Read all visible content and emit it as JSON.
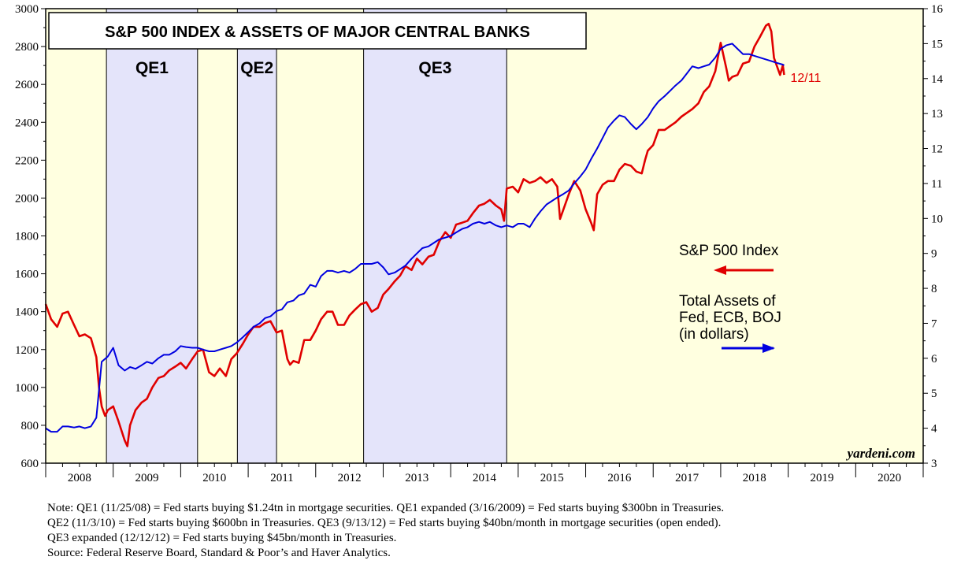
{
  "chart_data": {
    "type": "line",
    "title": "S&P 500 INDEX & ASSETS OF MAJOR CENTRAL BANKS",
    "x_range": [
      2008,
      2021
    ],
    "x_ticks": [
      "2008",
      "2009",
      "2010",
      "2011",
      "2012",
      "2013",
      "2014",
      "2015",
      "2016",
      "2017",
      "2018",
      "2019",
      "2020"
    ],
    "y_left": {
      "min": 600,
      "max": 3000,
      "ticks": [
        600,
        800,
        1000,
        1200,
        1400,
        1600,
        1800,
        2000,
        2200,
        2400,
        2600,
        2800,
        3000
      ]
    },
    "y_right": {
      "min": 3,
      "max": 16,
      "ticks": [
        3,
        4,
        5,
        6,
        7,
        8,
        9,
        10,
        11,
        12,
        13,
        14,
        15,
        16
      ]
    },
    "grid": false,
    "shaded_periods": [
      {
        "label": "QE1",
        "start": 2008.9,
        "end": 2010.25
      },
      {
        "label": "QE2",
        "start": 2010.84,
        "end": 2011.42
      },
      {
        "label": "QE3",
        "start": 2012.71,
        "end": 2014.83
      }
    ],
    "series": [
      {
        "name": "S&P 500 Index",
        "axis": "left",
        "color": "#e00000",
        "points": [
          [
            2008.0,
            1440
          ],
          [
            2008.08,
            1360
          ],
          [
            2008.17,
            1320
          ],
          [
            2008.25,
            1390
          ],
          [
            2008.33,
            1400
          ],
          [
            2008.42,
            1330
          ],
          [
            2008.5,
            1270
          ],
          [
            2008.58,
            1280
          ],
          [
            2008.67,
            1260
          ],
          [
            2008.75,
            1160
          ],
          [
            2008.79,
            1000
          ],
          [
            2008.83,
            900
          ],
          [
            2008.88,
            850
          ],
          [
            2008.92,
            880
          ],
          [
            2009.0,
            900
          ],
          [
            2009.08,
            820
          ],
          [
            2009.17,
            720
          ],
          [
            2009.21,
            690
          ],
          [
            2009.25,
            800
          ],
          [
            2009.33,
            880
          ],
          [
            2009.42,
            920
          ],
          [
            2009.5,
            940
          ],
          [
            2009.58,
            1000
          ],
          [
            2009.67,
            1050
          ],
          [
            2009.75,
            1060
          ],
          [
            2009.83,
            1090
          ],
          [
            2009.92,
            1110
          ],
          [
            2010.0,
            1130
          ],
          [
            2010.08,
            1100
          ],
          [
            2010.17,
            1150
          ],
          [
            2010.25,
            1190
          ],
          [
            2010.33,
            1200
          ],
          [
            2010.42,
            1080
          ],
          [
            2010.5,
            1060
          ],
          [
            2010.58,
            1100
          ],
          [
            2010.67,
            1060
          ],
          [
            2010.75,
            1150
          ],
          [
            2010.83,
            1180
          ],
          [
            2010.92,
            1230
          ],
          [
            2011.0,
            1280
          ],
          [
            2011.08,
            1320
          ],
          [
            2011.17,
            1320
          ],
          [
            2011.25,
            1340
          ],
          [
            2011.33,
            1350
          ],
          [
            2011.42,
            1290
          ],
          [
            2011.5,
            1300
          ],
          [
            2011.58,
            1150
          ],
          [
            2011.62,
            1120
          ],
          [
            2011.67,
            1140
          ],
          [
            2011.75,
            1130
          ],
          [
            2011.83,
            1250
          ],
          [
            2011.92,
            1250
          ],
          [
            2012.0,
            1300
          ],
          [
            2012.08,
            1360
          ],
          [
            2012.17,
            1400
          ],
          [
            2012.25,
            1400
          ],
          [
            2012.33,
            1330
          ],
          [
            2012.42,
            1330
          ],
          [
            2012.5,
            1380
          ],
          [
            2012.58,
            1410
          ],
          [
            2012.67,
            1440
          ],
          [
            2012.75,
            1450
          ],
          [
            2012.83,
            1400
          ],
          [
            2012.92,
            1420
          ],
          [
            2013.0,
            1490
          ],
          [
            2013.08,
            1520
          ],
          [
            2013.17,
            1560
          ],
          [
            2013.25,
            1590
          ],
          [
            2013.33,
            1640
          ],
          [
            2013.42,
            1620
          ],
          [
            2013.5,
            1680
          ],
          [
            2013.58,
            1650
          ],
          [
            2013.67,
            1690
          ],
          [
            2013.75,
            1700
          ],
          [
            2013.83,
            1770
          ],
          [
            2013.92,
            1820
          ],
          [
            2014.0,
            1790
          ],
          [
            2014.08,
            1860
          ],
          [
            2014.17,
            1870
          ],
          [
            2014.25,
            1880
          ],
          [
            2014.33,
            1920
          ],
          [
            2014.42,
            1960
          ],
          [
            2014.5,
            1970
          ],
          [
            2014.58,
            1990
          ],
          [
            2014.67,
            1960
          ],
          [
            2014.75,
            1940
          ],
          [
            2014.79,
            1880
          ],
          [
            2014.83,
            2050
          ],
          [
            2014.92,
            2060
          ],
          [
            2015.0,
            2030
          ],
          [
            2015.08,
            2100
          ],
          [
            2015.17,
            2080
          ],
          [
            2015.25,
            2090
          ],
          [
            2015.33,
            2110
          ],
          [
            2015.42,
            2080
          ],
          [
            2015.5,
            2100
          ],
          [
            2015.58,
            2060
          ],
          [
            2015.62,
            1890
          ],
          [
            2015.67,
            1940
          ],
          [
            2015.75,
            2020
          ],
          [
            2015.83,
            2090
          ],
          [
            2015.92,
            2040
          ],
          [
            2016.0,
            1940
          ],
          [
            2016.08,
            1870
          ],
          [
            2016.12,
            1830
          ],
          [
            2016.17,
            2020
          ],
          [
            2016.25,
            2070
          ],
          [
            2016.33,
            2090
          ],
          [
            2016.42,
            2090
          ],
          [
            2016.5,
            2150
          ],
          [
            2016.58,
            2180
          ],
          [
            2016.67,
            2170
          ],
          [
            2016.75,
            2140
          ],
          [
            2016.83,
            2130
          ],
          [
            2016.88,
            2200
          ],
          [
            2016.92,
            2250
          ],
          [
            2017.0,
            2280
          ],
          [
            2017.08,
            2360
          ],
          [
            2017.17,
            2360
          ],
          [
            2017.25,
            2380
          ],
          [
            2017.33,
            2400
          ],
          [
            2017.42,
            2430
          ],
          [
            2017.5,
            2450
          ],
          [
            2017.58,
            2470
          ],
          [
            2017.67,
            2500
          ],
          [
            2017.75,
            2560
          ],
          [
            2017.83,
            2590
          ],
          [
            2017.92,
            2670
          ],
          [
            2018.0,
            2820
          ],
          [
            2018.08,
            2690
          ],
          [
            2018.12,
            2620
          ],
          [
            2018.17,
            2640
          ],
          [
            2018.25,
            2650
          ],
          [
            2018.33,
            2710
          ],
          [
            2018.42,
            2720
          ],
          [
            2018.5,
            2800
          ],
          [
            2018.58,
            2850
          ],
          [
            2018.67,
            2910
          ],
          [
            2018.71,
            2920
          ],
          [
            2018.75,
            2880
          ],
          [
            2018.79,
            2740
          ],
          [
            2018.83,
            2700
          ],
          [
            2018.88,
            2650
          ],
          [
            2018.92,
            2700
          ],
          [
            2018.94,
            2650
          ]
        ]
      },
      {
        "name": "Total Assets of Fed, ECB, BOJ (in dollars)",
        "axis": "right",
        "color": "#0000e0",
        "points": [
          [
            2008.0,
            4.0
          ],
          [
            2008.08,
            3.9
          ],
          [
            2008.17,
            3.9
          ],
          [
            2008.25,
            4.05
          ],
          [
            2008.33,
            4.05
          ],
          [
            2008.42,
            4.02
          ],
          [
            2008.5,
            4.05
          ],
          [
            2008.58,
            4.0
          ],
          [
            2008.67,
            4.05
          ],
          [
            2008.75,
            4.3
          ],
          [
            2008.79,
            5.1
          ],
          [
            2008.83,
            5.9
          ],
          [
            2008.92,
            6.05
          ],
          [
            2009.0,
            6.3
          ],
          [
            2009.08,
            5.8
          ],
          [
            2009.17,
            5.65
          ],
          [
            2009.25,
            5.75
          ],
          [
            2009.33,
            5.7
          ],
          [
            2009.42,
            5.8
          ],
          [
            2009.5,
            5.9
          ],
          [
            2009.58,
            5.85
          ],
          [
            2009.67,
            6.0
          ],
          [
            2009.75,
            6.1
          ],
          [
            2009.83,
            6.1
          ],
          [
            2009.92,
            6.2
          ],
          [
            2010.0,
            6.35
          ],
          [
            2010.08,
            6.32
          ],
          [
            2010.17,
            6.3
          ],
          [
            2010.25,
            6.3
          ],
          [
            2010.33,
            6.25
          ],
          [
            2010.42,
            6.2
          ],
          [
            2010.5,
            6.2
          ],
          [
            2010.58,
            6.25
          ],
          [
            2010.67,
            6.3
          ],
          [
            2010.75,
            6.35
          ],
          [
            2010.83,
            6.45
          ],
          [
            2010.92,
            6.6
          ],
          [
            2011.0,
            6.75
          ],
          [
            2011.08,
            6.9
          ],
          [
            2011.17,
            7.0
          ],
          [
            2011.25,
            7.15
          ],
          [
            2011.33,
            7.2
          ],
          [
            2011.42,
            7.35
          ],
          [
            2011.5,
            7.4
          ],
          [
            2011.58,
            7.6
          ],
          [
            2011.67,
            7.65
          ],
          [
            2011.75,
            7.8
          ],
          [
            2011.83,
            7.85
          ],
          [
            2011.92,
            8.1
          ],
          [
            2012.0,
            8.05
          ],
          [
            2012.08,
            8.35
          ],
          [
            2012.17,
            8.5
          ],
          [
            2012.25,
            8.5
          ],
          [
            2012.33,
            8.45
          ],
          [
            2012.42,
            8.5
          ],
          [
            2012.5,
            8.45
          ],
          [
            2012.58,
            8.55
          ],
          [
            2012.67,
            8.7
          ],
          [
            2012.75,
            8.7
          ],
          [
            2012.83,
            8.7
          ],
          [
            2012.92,
            8.75
          ],
          [
            2013.0,
            8.6
          ],
          [
            2013.08,
            8.4
          ],
          [
            2013.17,
            8.45
          ],
          [
            2013.25,
            8.55
          ],
          [
            2013.33,
            8.65
          ],
          [
            2013.42,
            8.85
          ],
          [
            2013.5,
            9.0
          ],
          [
            2013.58,
            9.15
          ],
          [
            2013.67,
            9.2
          ],
          [
            2013.75,
            9.3
          ],
          [
            2013.83,
            9.4
          ],
          [
            2013.92,
            9.45
          ],
          [
            2014.0,
            9.5
          ],
          [
            2014.08,
            9.6
          ],
          [
            2014.17,
            9.7
          ],
          [
            2014.25,
            9.75
          ],
          [
            2014.33,
            9.85
          ],
          [
            2014.42,
            9.9
          ],
          [
            2014.5,
            9.85
          ],
          [
            2014.58,
            9.9
          ],
          [
            2014.67,
            9.8
          ],
          [
            2014.75,
            9.75
          ],
          [
            2014.83,
            9.8
          ],
          [
            2014.92,
            9.75
          ],
          [
            2015.0,
            9.85
          ],
          [
            2015.08,
            9.85
          ],
          [
            2015.17,
            9.75
          ],
          [
            2015.25,
            10.0
          ],
          [
            2015.33,
            10.2
          ],
          [
            2015.42,
            10.4
          ],
          [
            2015.5,
            10.5
          ],
          [
            2015.58,
            10.6
          ],
          [
            2015.67,
            10.7
          ],
          [
            2015.75,
            10.8
          ],
          [
            2015.83,
            11.0
          ],
          [
            2015.92,
            11.2
          ],
          [
            2016.0,
            11.4
          ],
          [
            2016.08,
            11.7
          ],
          [
            2016.17,
            12.0
          ],
          [
            2016.25,
            12.3
          ],
          [
            2016.33,
            12.6
          ],
          [
            2016.42,
            12.8
          ],
          [
            2016.5,
            12.95
          ],
          [
            2016.58,
            12.9
          ],
          [
            2016.67,
            12.7
          ],
          [
            2016.75,
            12.55
          ],
          [
            2016.83,
            12.7
          ],
          [
            2016.92,
            12.9
          ],
          [
            2017.0,
            13.15
          ],
          [
            2017.08,
            13.35
          ],
          [
            2017.17,
            13.5
          ],
          [
            2017.25,
            13.65
          ],
          [
            2017.33,
            13.8
          ],
          [
            2017.42,
            13.95
          ],
          [
            2017.5,
            14.15
          ],
          [
            2017.58,
            14.35
          ],
          [
            2017.67,
            14.3
          ],
          [
            2017.75,
            14.35
          ],
          [
            2017.83,
            14.4
          ],
          [
            2017.92,
            14.6
          ],
          [
            2018.0,
            14.85
          ],
          [
            2018.08,
            14.95
          ],
          [
            2018.17,
            15.0
          ],
          [
            2018.25,
            14.85
          ],
          [
            2018.33,
            14.7
          ],
          [
            2018.42,
            14.7
          ],
          [
            2018.5,
            14.65
          ],
          [
            2018.58,
            14.6
          ],
          [
            2018.67,
            14.55
          ],
          [
            2018.75,
            14.5
          ],
          [
            2018.83,
            14.45
          ],
          [
            2018.92,
            14.4
          ],
          [
            2018.94,
            14.38
          ]
        ]
      }
    ],
    "legend": [
      {
        "lines": [
          "S&P 500 Index"
        ],
        "arrow": "left",
        "color": "#e00000"
      },
      {
        "lines": [
          "Total Assets of",
          "Fed, ECB, BOJ",
          "(in dollars)"
        ],
        "arrow": "right",
        "color": "#0000e0"
      }
    ],
    "end_label": "12/11",
    "brand": "yardeni.com",
    "colors": {
      "plot_background": "#ffffe0",
      "shade": "#e4e4fa"
    }
  },
  "notes": [
    "Note: QE1 (11/25/08) = Fed starts buying $1.24tn in mortgage securities. QE1 expanded (3/16/2009) = Fed starts buying $300bn in Treasuries.",
    "QE2 (11/3/10) = Fed starts buying $600bn in Treasuries. QE3 (9/13/12) = Fed starts buying $40bn/month in mortgage securities (open ended).",
    "QE3 expanded (12/12/12) = Fed starts buying $45bn/month in Treasuries.",
    "Source: Federal Reserve Board, Standard & Poor’s and Haver Analytics."
  ]
}
